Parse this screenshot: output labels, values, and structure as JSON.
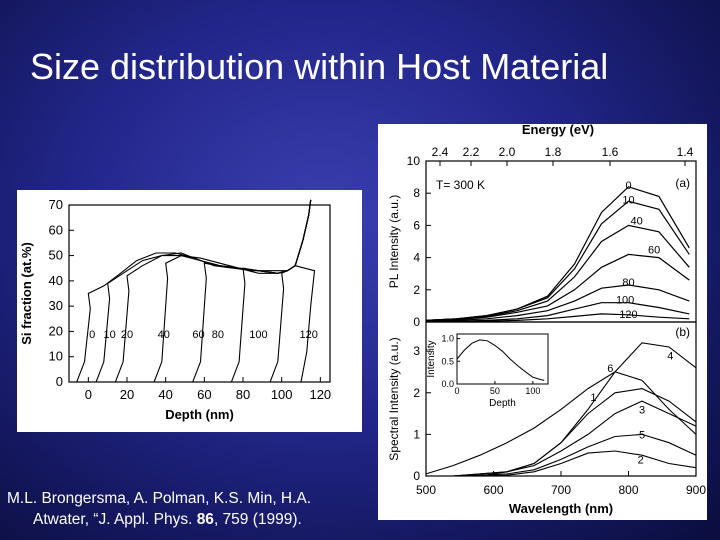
{
  "slide": {
    "title": "Size distribution within Host Material",
    "citation": {
      "line1": "M.L. Brongersma, A. Polman, K.S. Min, H.A.",
      "line2_prefix": "Atwater, “J. Appl. Phys. ",
      "line2_volume": "86",
      "line2_suffix": ", 759 (1999)."
    }
  },
  "chart_data": [
    {
      "type": "line",
      "xlabel": "Depth (nm)",
      "ylabel": "Si fraction (at.%)",
      "xlim": [
        -10,
        125
      ],
      "ylim": [
        0,
        70
      ],
      "xticks": [
        0,
        20,
        40,
        60,
        80,
        100,
        120
      ],
      "yticks": [
        0,
        10,
        20,
        30,
        40,
        50,
        60,
        70
      ],
      "curve_labels": [
        {
          "text": "0",
          "x": 2,
          "y": 19
        },
        {
          "text": "10",
          "x": 11,
          "y": 19
        },
        {
          "text": "20",
          "x": 20,
          "y": 19
        },
        {
          "text": "40",
          "x": 39,
          "y": 19
        },
        {
          "text": "60",
          "x": 57,
          "y": 19
        },
        {
          "text": "80",
          "x": 67,
          "y": 19
        },
        {
          "text": "100",
          "x": 88,
          "y": 19
        },
        {
          "text": "120",
          "x": 114,
          "y": 19
        }
      ],
      "series": [
        {
          "edge": 0,
          "plateau": [
            [
              0,
              35
            ],
            [
              8,
              38
            ],
            [
              15,
              42
            ],
            [
              25,
              48
            ],
            [
              35,
              51
            ],
            [
              45,
              51
            ],
            [
              55,
              49
            ],
            [
              65,
              46
            ],
            [
              75,
              45
            ],
            [
              85,
              44
            ],
            [
              95,
              44
            ],
            [
              103,
              44
            ]
          ]
        },
        {
          "edge": 10,
          "plateau": [
            [
              10,
              39
            ],
            [
              18,
              43
            ],
            [
              28,
              48
            ],
            [
              38,
              50
            ],
            [
              48,
              51
            ],
            [
              58,
              48
            ],
            [
              68,
              46
            ],
            [
              78,
              45
            ],
            [
              88,
              44
            ],
            [
              98,
              43
            ],
            [
              103,
              44
            ]
          ]
        },
        {
          "edge": 20,
          "plateau": [
            [
              20,
              42
            ],
            [
              28,
              46
            ],
            [
              38,
              50
            ],
            [
              48,
              50
            ],
            [
              58,
              48
            ],
            [
              68,
              46
            ],
            [
              78,
              45
            ],
            [
              88,
              44
            ],
            [
              98,
              43
            ],
            [
              103,
              44
            ]
          ]
        },
        {
          "edge": 40,
          "plateau": [
            [
              40,
              47
            ],
            [
              48,
              50
            ],
            [
              58,
              49
            ],
            [
              68,
              47
            ],
            [
              78,
              45
            ],
            [
              88,
              44
            ],
            [
              98,
              43
            ],
            [
              103,
              44
            ]
          ]
        },
        {
          "edge": 60,
          "plateau": [
            [
              60,
              47
            ],
            [
              68,
              46
            ],
            [
              78,
              45
            ],
            [
              88,
              43
            ],
            [
              98,
              43
            ],
            [
              103,
              44
            ]
          ]
        },
        {
          "edge": 80,
          "plateau": [
            [
              80,
              45
            ],
            [
              88,
              44
            ],
            [
              98,
              43
            ],
            [
              103,
              44
            ]
          ]
        },
        {
          "edge": 100,
          "plateau": [
            [
              100,
              43
            ],
            [
              103,
              44
            ]
          ]
        },
        {
          "edge": 120,
          "plateau": []
        }
      ]
    },
    {
      "type": "line",
      "panel_label": "(a)",
      "annotation": "T= 300 K",
      "xlabel": "Wavelength (nm)",
      "top_axis_label": "Energy (eV)",
      "ylabel": "PL Intensity (a.u.)",
      "xlim": [
        500,
        900
      ],
      "ylim": [
        0,
        10
      ],
      "yticks": [
        0,
        2,
        4,
        6,
        8,
        10
      ],
      "energy_ticks": [
        "2.4",
        "2.2",
        "2.0",
        "1.8",
        "1.6",
        "1.4"
      ],
      "series": [
        {
          "name": "0",
          "label_x": 800,
          "label_y": 8.5,
          "y": [
            0.1,
            0.2,
            0.4,
            0.8,
            1.6,
            3.6,
            6.8,
            8.4,
            7.8,
            4.6
          ]
        },
        {
          "name": "10",
          "label_x": 800,
          "label_y": 7.6,
          "y": [
            0.1,
            0.2,
            0.4,
            0.8,
            1.5,
            3.3,
            6.1,
            7.5,
            7.0,
            4.2
          ]
        },
        {
          "name": "40",
          "label_x": 812,
          "label_y": 6.3,
          "y": [
            0.1,
            0.2,
            0.35,
            0.7,
            1.3,
            2.8,
            5.0,
            6.0,
            5.6,
            3.4
          ]
        },
        {
          "name": "60",
          "label_x": 838,
          "label_y": 4.5,
          "y": [
            0.05,
            0.15,
            0.3,
            0.6,
            1.0,
            2.0,
            3.4,
            4.2,
            4.0,
            2.6
          ]
        },
        {
          "name": "80",
          "label_x": 800,
          "label_y": 2.5,
          "y": [
            0.05,
            0.1,
            0.2,
            0.4,
            0.7,
            1.3,
            2.1,
            2.3,
            2.0,
            1.3
          ]
        },
        {
          "name": "100",
          "label_x": 795,
          "label_y": 1.4,
          "y": [
            0.02,
            0.05,
            0.1,
            0.2,
            0.4,
            0.8,
            1.2,
            1.2,
            0.9,
            0.5
          ]
        },
        {
          "name": "120",
          "label_x": 800,
          "label_y": 0.5,
          "y": [
            0.01,
            0.02,
            0.05,
            0.1,
            0.2,
            0.35,
            0.5,
            0.45,
            0.3,
            0.2
          ]
        }
      ]
    },
    {
      "type": "line",
      "panel_label": "(b)",
      "xlabel": "Wavelength (nm)",
      "ylabel": "Spectral Intensity (a.u.)",
      "xlim": [
        500,
        900
      ],
      "ylim": [
        0,
        3.7
      ],
      "xticks": [
        500,
        600,
        700,
        800,
        900
      ],
      "yticks": [
        0,
        1,
        2,
        3
      ],
      "series": [
        {
          "name": "6",
          "label_x": 773,
          "label_y": 2.6,
          "y": [
            0.05,
            0.25,
            0.5,
            0.8,
            1.15,
            1.6,
            2.1,
            2.5,
            2.3,
            1.6,
            1.0
          ]
        },
        {
          "name": "4",
          "label_x": 862,
          "label_y": 2.9,
          "y": [
            0.0,
            0.0,
            0.0,
            0.1,
            0.3,
            0.8,
            1.6,
            2.5,
            3.2,
            3.1,
            2.6
          ]
        },
        {
          "name": "1",
          "label_x": 748,
          "label_y": 1.9,
          "y": [
            0.0,
            0.0,
            0.05,
            0.1,
            0.3,
            0.8,
            1.5,
            2.0,
            2.1,
            1.8,
            1.3
          ]
        },
        {
          "name": "3",
          "label_x": 820,
          "label_y": 1.6,
          "y": [
            0.0,
            0.0,
            0.05,
            0.1,
            0.25,
            0.6,
            1.0,
            1.5,
            1.8,
            1.5,
            1.2
          ]
        },
        {
          "name": "5",
          "label_x": 820,
          "label_y": 1.0,
          "y": [
            0.0,
            0.0,
            0.02,
            0.05,
            0.15,
            0.4,
            0.7,
            0.95,
            1.0,
            0.8,
            0.5
          ]
        },
        {
          "name": "2",
          "label_x": 818,
          "label_y": 0.4,
          "y": [
            0.0,
            0.0,
            0.0,
            0.02,
            0.1,
            0.3,
            0.55,
            0.6,
            0.5,
            0.3,
            0.2
          ]
        }
      ]
    },
    {
      "type": "line",
      "inset": true,
      "xlabel": "Depth",
      "ylabel": "Intensity",
      "xlim": [
        0,
        120
      ],
      "ylim": [
        0,
        1.1
      ],
      "xticks": [
        0,
        50,
        100
      ],
      "yticks": [
        0,
        0.5,
        1.0
      ],
      "ytick_labels": [
        "0.0",
        "0.5",
        "1.0"
      ],
      "values": [
        [
          0,
          0.55
        ],
        [
          10,
          0.75
        ],
        [
          20,
          0.9
        ],
        [
          30,
          0.97
        ],
        [
          40,
          0.95
        ],
        [
          50,
          0.85
        ],
        [
          60,
          0.72
        ],
        [
          70,
          0.55
        ],
        [
          80,
          0.4
        ],
        [
          90,
          0.27
        ],
        [
          100,
          0.15
        ],
        [
          110,
          0.1
        ],
        [
          115,
          0.08
        ]
      ]
    }
  ]
}
